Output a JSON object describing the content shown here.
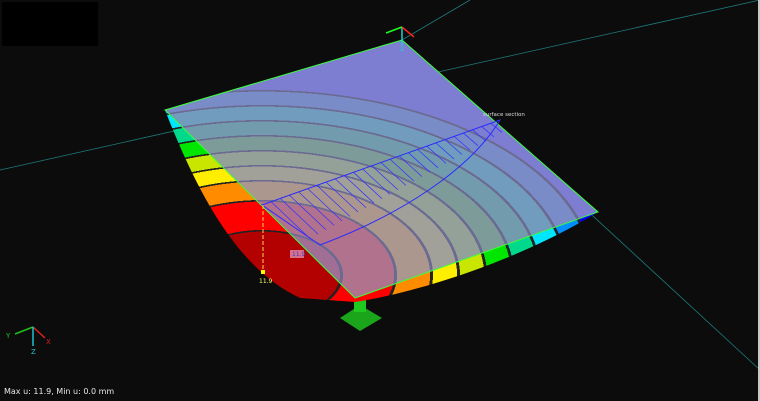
{
  "status": {
    "text": "Max u: 11.9, Min u: 0.0 mm"
  },
  "labels": {
    "section": "surface section",
    "max_value": "11.9",
    "max_value_tag": "11.9"
  },
  "axes": {
    "x": "X",
    "y": "Y",
    "z": "Z"
  },
  "colors": {
    "background": "#0c0c0c",
    "plate_edge": "#3cff3c",
    "section": "#2a2aff",
    "guide_line": "#1f8c8c"
  },
  "legend_bands": [
    "#b30000",
    "#ff0000",
    "#ff8c00",
    "#ffee00",
    "#c8e600",
    "#00e600",
    "#00d88c",
    "#00e6ff",
    "#0090ff",
    "#0000ff"
  ]
}
